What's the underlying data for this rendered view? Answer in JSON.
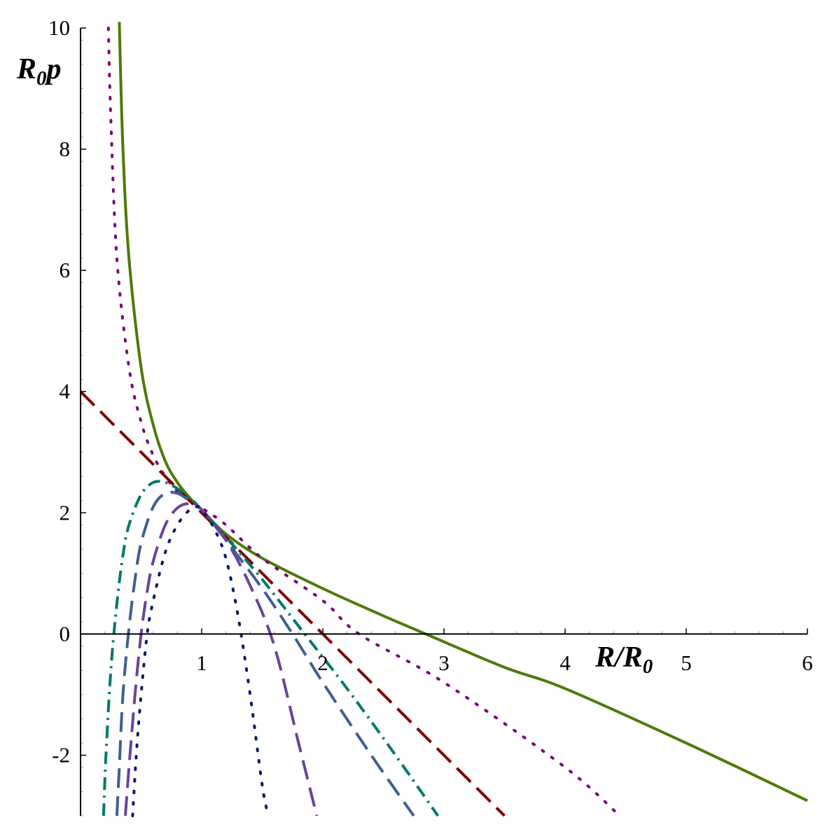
{
  "chart_data": {
    "type": "line",
    "title": "",
    "xlabel": {
      "main": "R/R",
      "sub": "0"
    },
    "ylabel": {
      "main": "R",
      "sub": "0",
      "tail": "p"
    },
    "xlim": [
      0,
      6
    ],
    "ylim": [
      -3,
      10
    ],
    "x_ticks": [
      1,
      2,
      3,
      4,
      5,
      6
    ],
    "y_ticks": [
      -2,
      0,
      2,
      4,
      6,
      8,
      10
    ],
    "x_tick_labels": [
      "1",
      "2",
      "3",
      "4",
      "5",
      "6"
    ],
    "y_tick_labels": [
      "-2",
      "0",
      "2",
      "4",
      "6",
      "8",
      "10"
    ],
    "grid": false,
    "legend": "none",
    "series": [
      {
        "style": "solid",
        "color": "#4e7a0a",
        "x": [
          0.32,
          0.35,
          0.4,
          0.5,
          0.6,
          0.7,
          0.8,
          0.9,
          1.0,
          1.2,
          1.5,
          2.0,
          2.5,
          2.85,
          3.5,
          4.0,
          5.0,
          6.0
        ],
        "y": [
          10.1,
          8.0,
          6.2,
          4.4,
          3.45,
          2.85,
          2.5,
          2.25,
          2.05,
          1.65,
          1.25,
          0.75,
          0.3,
          0.0,
          -0.55,
          -0.9,
          -1.8,
          -2.75
        ]
      },
      {
        "style": "dotted",
        "color": "#7a0a7a",
        "x": [
          0.23,
          0.25,
          0.3,
          0.4,
          0.5,
          0.6,
          0.7,
          0.8,
          0.9,
          1.0,
          1.2,
          1.5,
          2.0,
          2.3,
          3.0,
          4.0,
          4.45
        ],
        "y": [
          10.0,
          8.5,
          6.2,
          4.4,
          3.5,
          2.95,
          2.6,
          2.35,
          2.2,
          2.08,
          1.8,
          1.25,
          0.55,
          0.0,
          -0.8,
          -2.2,
          -3.0
        ]
      },
      {
        "style": "long-dash",
        "color": "#800000",
        "x": [
          0.0,
          1.0,
          2.0,
          3.0,
          3.5
        ],
        "y": [
          4.0,
          2.0,
          0.0,
          -2.0,
          -3.0
        ]
      },
      {
        "style": "dash-dot",
        "color": "#00786b",
        "x": [
          0.19,
          0.21,
          0.25,
          0.3,
          0.35,
          0.4,
          0.5,
          0.6,
          0.7,
          0.8,
          0.9,
          1.0,
          1.2,
          1.5,
          1.85,
          2.2,
          2.6,
          2.95
        ],
        "y": [
          -3.0,
          -2.0,
          -0.6,
          0.5,
          1.3,
          1.8,
          2.3,
          2.5,
          2.5,
          2.4,
          2.25,
          2.05,
          1.6,
          0.9,
          0.0,
          -0.9,
          -2.0,
          -3.0
        ]
      },
      {
        "style": "long-dash",
        "color": "#3f5f93",
        "x": [
          0.3,
          0.32,
          0.35,
          0.4,
          0.45,
          0.5,
          0.6,
          0.7,
          0.8,
          0.9,
          1.0,
          1.2,
          1.5,
          1.75,
          2.0,
          2.4,
          2.75
        ],
        "y": [
          -3.0,
          -2.2,
          -1.0,
          0.1,
          0.9,
          1.5,
          2.1,
          2.32,
          2.32,
          2.2,
          2.05,
          1.55,
          0.75,
          0.0,
          -0.8,
          -2.0,
          -3.0
        ]
      },
      {
        "style": "long-dash",
        "color": "#6a449b",
        "x": [
          0.37,
          0.4,
          0.45,
          0.5,
          0.55,
          0.6,
          0.7,
          0.8,
          0.9,
          1.0,
          1.2,
          1.4,
          1.6,
          1.8,
          1.95
        ],
        "y": [
          -3.0,
          -2.2,
          -1.0,
          0.0,
          0.7,
          1.2,
          1.8,
          2.08,
          2.15,
          2.05,
          1.55,
          0.8,
          -0.2,
          -1.8,
          -3.0
        ]
      },
      {
        "style": "dotted",
        "color": "#0b1a6b",
        "x": [
          0.43,
          0.46,
          0.5,
          0.55,
          0.6,
          0.7,
          0.8,
          0.9,
          0.95,
          1.0,
          1.1,
          1.2,
          1.3,
          1.4,
          1.5,
          1.55
        ],
        "y": [
          -3.0,
          -2.0,
          -1.0,
          0.0,
          0.55,
          1.35,
          1.8,
          2.05,
          2.1,
          2.05,
          1.75,
          1.25,
          0.3,
          -1.0,
          -2.5,
          -3.0
        ]
      }
    ]
  }
}
